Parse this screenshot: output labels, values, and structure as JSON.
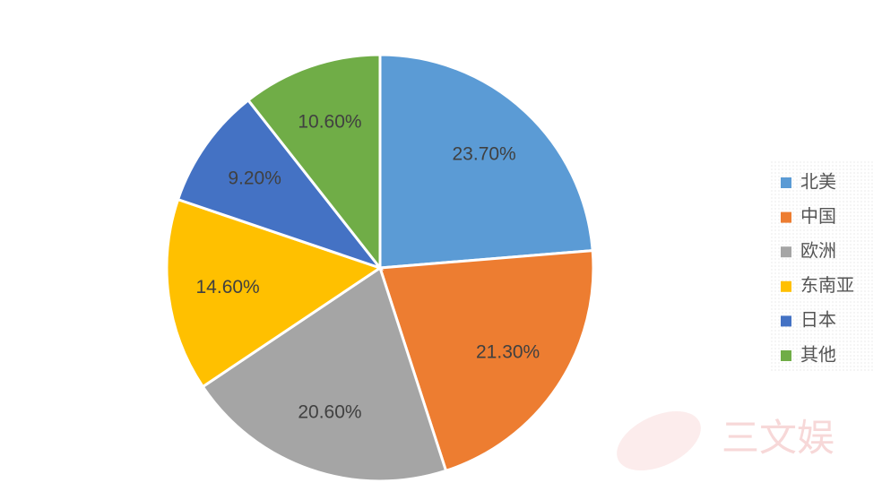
{
  "chart_data": {
    "type": "pie",
    "categories": [
      "北美",
      "中国",
      "欧洲",
      "东南亚",
      "日本",
      "其他"
    ],
    "values": [
      23.7,
      21.3,
      20.6,
      14.6,
      9.2,
      10.6
    ],
    "value_labels": [
      "23.70%",
      "21.30%",
      "20.60%",
      "14.60%",
      "9.20%",
      "10.60%"
    ],
    "colors": [
      "#5b9bd5",
      "#ed7d31",
      "#a5a5a5",
      "#ffc000",
      "#4472c4",
      "#70ad47"
    ],
    "legend": "right"
  },
  "watermark": "三文娱"
}
